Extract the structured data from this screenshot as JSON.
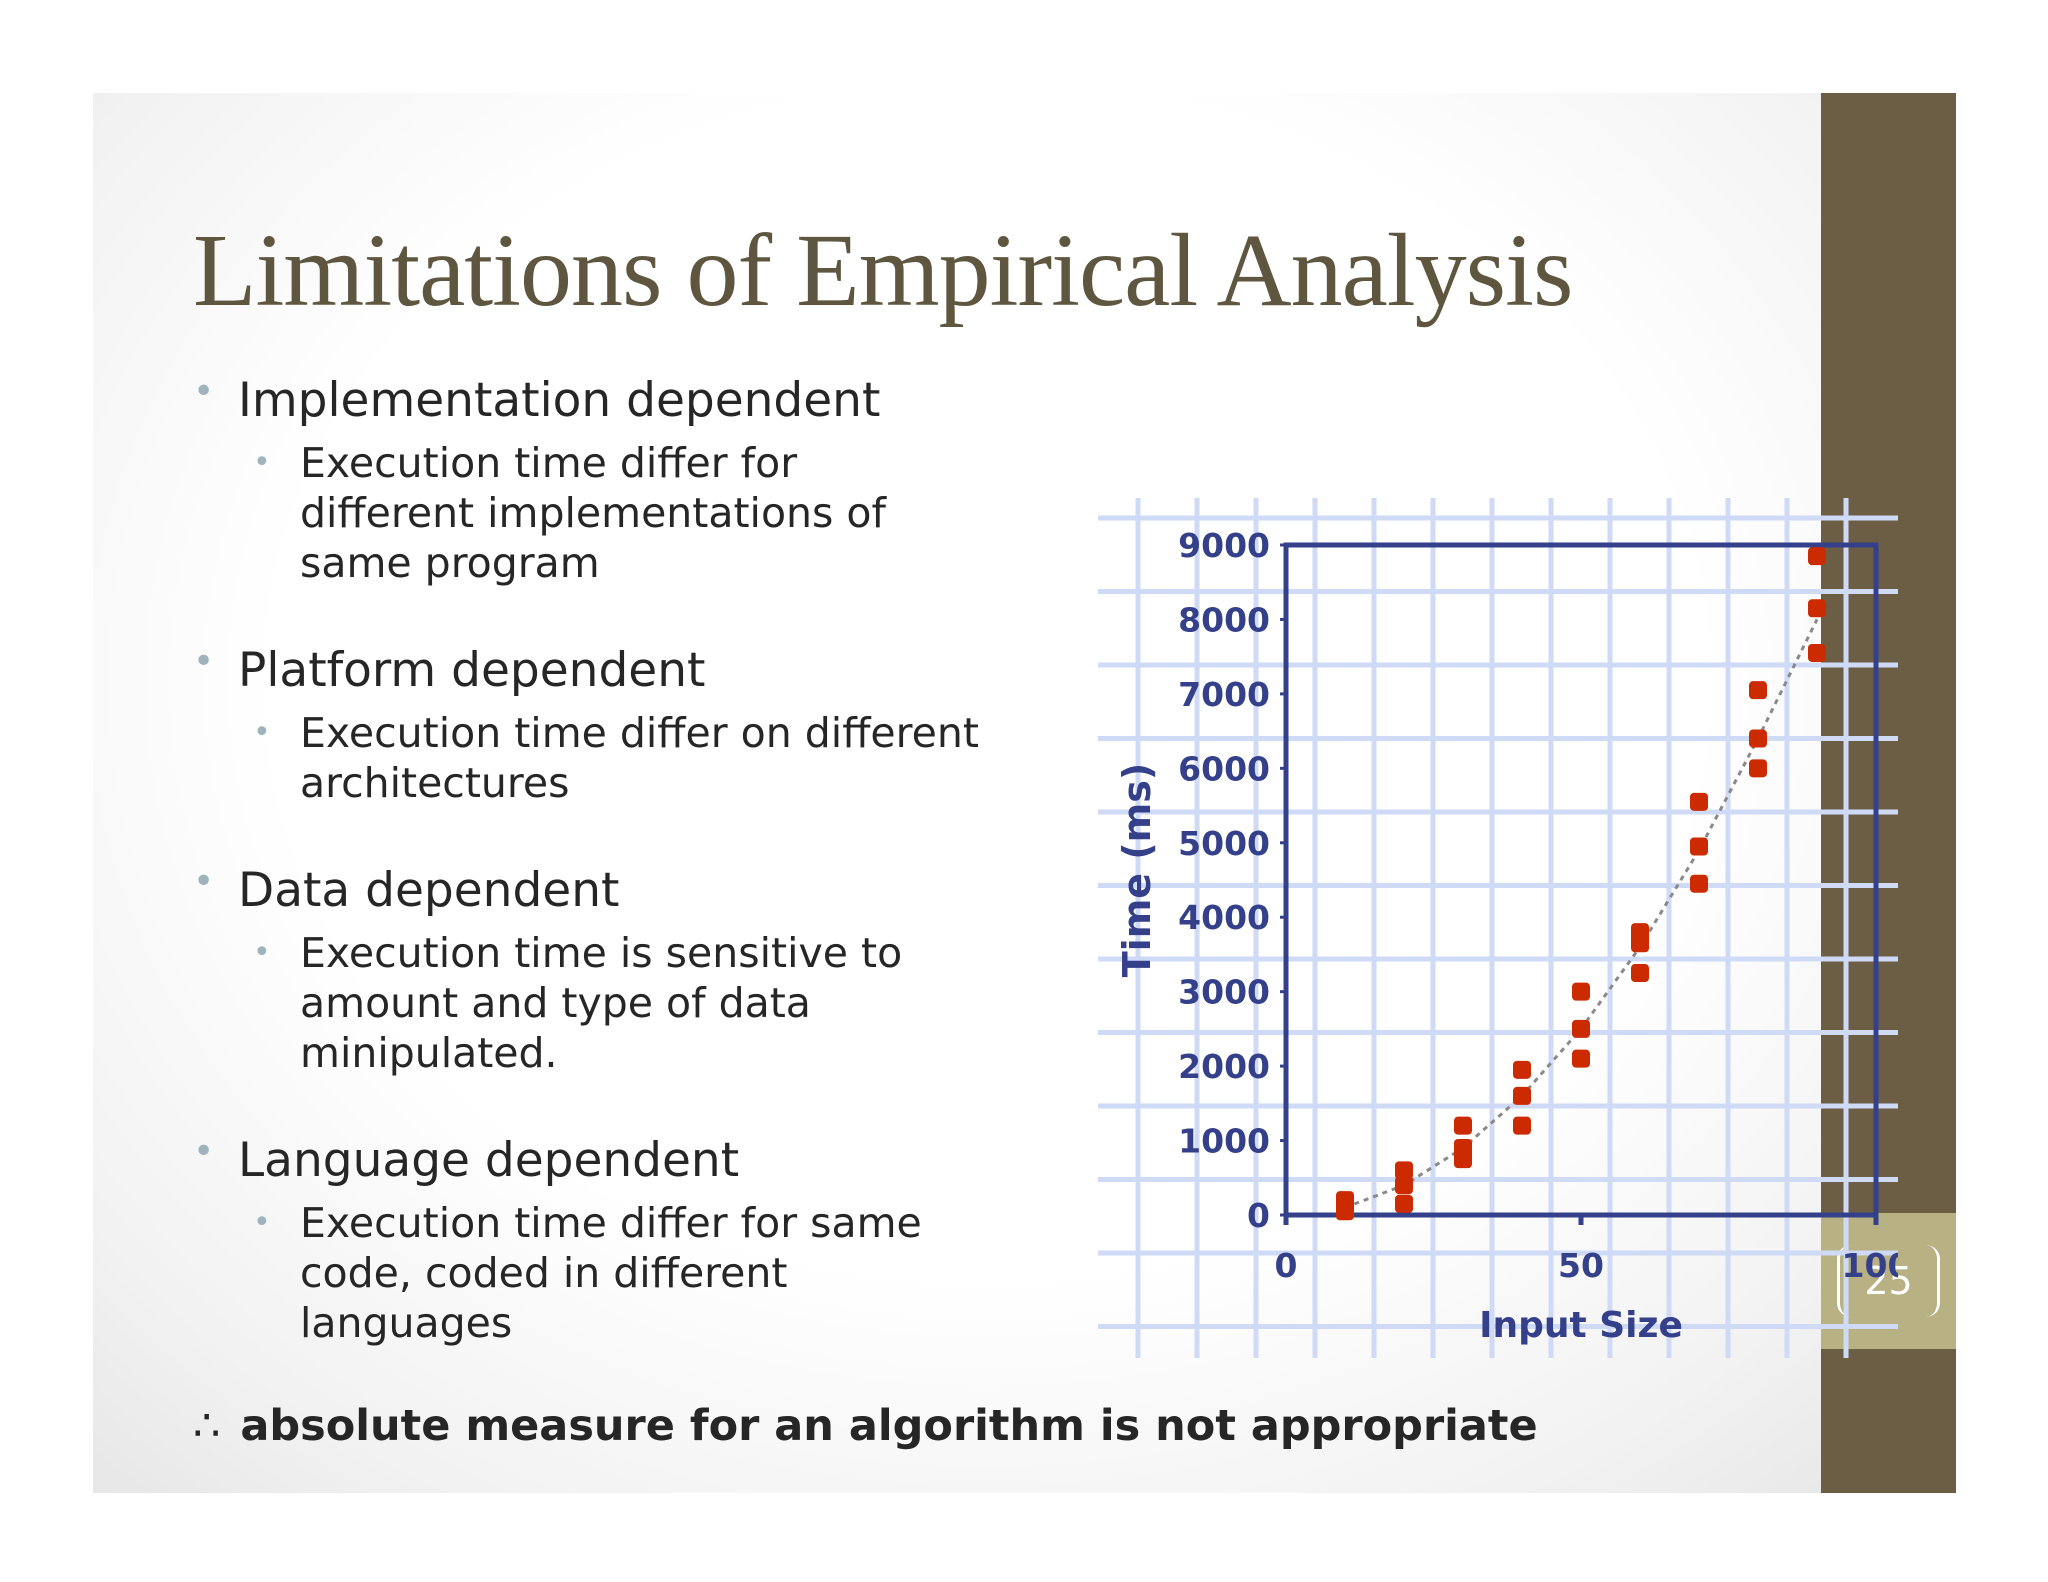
{
  "slide": {
    "title": "Limitations of Empirical Analysis",
    "page_number": "25",
    "bullets": [
      {
        "text": "Implementation dependent",
        "sub": [
          "Execution time differ for",
          "different implementations of",
          "same program"
        ]
      },
      {
        "text": "Platform dependent",
        "sub": [
          "Execution time differ on different",
          "architectures"
        ]
      },
      {
        "text": "Data dependent",
        "sub": [
          "Execution time is sensitive to",
          "amount and type of data",
          "minipulated."
        ]
      },
      {
        "text": "Language dependent",
        "sub": [
          "Execution time differ for same",
          "code, coded in different",
          "languages"
        ]
      }
    ],
    "conclusion_symbol": "∴",
    "conclusion": "absolute measure for an algorithm is not appropriate",
    "colors": {
      "sidebar": "#6b5e45",
      "page_box": "#b8b184",
      "title": "#5f5640",
      "bullet": "#9fb3bd",
      "marker": "#cc2a00",
      "axis": "#35408a"
    }
  },
  "chart_data": {
    "type": "scatter",
    "title": "",
    "xlabel": "Input Size",
    "ylabel": "Time (ms)",
    "xlim": [
      0,
      100
    ],
    "ylim": [
      0,
      9000
    ],
    "x_ticks": [
      0,
      50,
      100
    ],
    "y_ticks": [
      0,
      1000,
      2000,
      3000,
      4000,
      5000,
      6000,
      7000,
      8000,
      9000
    ],
    "grid": true,
    "trend_line": "dashed",
    "points": [
      {
        "x": 10,
        "y": 50
      },
      {
        "x": 10,
        "y": 120
      },
      {
        "x": 10,
        "y": 200
      },
      {
        "x": 20,
        "y": 150
      },
      {
        "x": 20,
        "y": 400
      },
      {
        "x": 20,
        "y": 600
      },
      {
        "x": 30,
        "y": 750
      },
      {
        "x": 30,
        "y": 900
      },
      {
        "x": 30,
        "y": 1200
      },
      {
        "x": 40,
        "y": 1200
      },
      {
        "x": 40,
        "y": 1600
      },
      {
        "x": 40,
        "y": 1950
      },
      {
        "x": 50,
        "y": 2100
      },
      {
        "x": 50,
        "y": 2500
      },
      {
        "x": 50,
        "y": 3000
      },
      {
        "x": 60,
        "y": 3250
      },
      {
        "x": 60,
        "y": 3650
      },
      {
        "x": 60,
        "y": 3800
      },
      {
        "x": 70,
        "y": 4450
      },
      {
        "x": 70,
        "y": 4950
      },
      {
        "x": 70,
        "y": 5550
      },
      {
        "x": 80,
        "y": 6000
      },
      {
        "x": 80,
        "y": 6400
      },
      {
        "x": 80,
        "y": 7050
      },
      {
        "x": 90,
        "y": 7550
      },
      {
        "x": 90,
        "y": 8150
      },
      {
        "x": 90,
        "y": 8850
      }
    ],
    "trend": [
      {
        "x": 10,
        "y": 100
      },
      {
        "x": 20,
        "y": 400
      },
      {
        "x": 30,
        "y": 900
      },
      {
        "x": 40,
        "y": 1600
      },
      {
        "x": 50,
        "y": 2500
      },
      {
        "x": 60,
        "y": 3600
      },
      {
        "x": 70,
        "y": 4900
      },
      {
        "x": 80,
        "y": 6400
      },
      {
        "x": 90,
        "y": 8000
      }
    ]
  }
}
